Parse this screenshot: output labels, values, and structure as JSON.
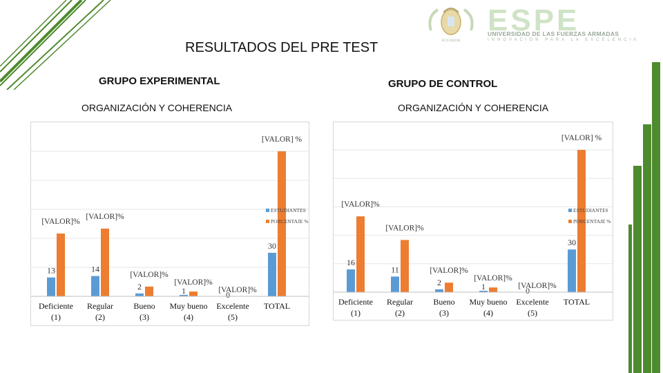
{
  "slide": {
    "title": "RESULTADOS DEL PRE TEST",
    "logo": {
      "word": "ESPE",
      "subtitle": "UNIVERSIDAD DE LAS FUERZAS ARMADAS",
      "tagline": "INNOVACIÓN PARA LA EXCELENCIA",
      "seal_text": "ECUADOR"
    },
    "colors": {
      "accent_green": "#4e8a2e",
      "bar_blue": "#5b9bd5",
      "bar_orange": "#ed7d31",
      "logo_green": "#cfe3c6"
    }
  },
  "chart_data": [
    {
      "type": "bar",
      "group_title": "GRUPO EXPERIMENTAL",
      "title": "ORGANIZACIÓN Y COHERENCIA",
      "categories": [
        "Deficiente (1)",
        "Regular (2)",
        "Bueno (3)",
        "Muy bueno (4)",
        "Excelente (5)",
        "TOTAL"
      ],
      "category_lines": [
        [
          "Deficiente",
          "(1)"
        ],
        [
          "Regular",
          "(2)"
        ],
        [
          "Bueno",
          "(3)"
        ],
        [
          "Muy bueno",
          "(4)"
        ],
        [
          "Excelente",
          "(5)"
        ],
        [
          "TOTAL",
          ""
        ]
      ],
      "series": [
        {
          "name": "ESTUDIANTES",
          "values": [
            13,
            14,
            2,
            1,
            0,
            30
          ],
          "labels": [
            "13",
            "14",
            "2",
            "1",
            "0",
            "30"
          ]
        },
        {
          "name": "PORCENTAJE %",
          "values": [
            43.3,
            46.7,
            6.7,
            3.3,
            0,
            100
          ],
          "labels": [
            "[VALOR]%",
            "[VALOR]%",
            "[VALOR]%",
            "[VALOR]%",
            "[VALOR]%",
            "[VALOR] %"
          ]
        }
      ],
      "ylim": [
        0,
        100
      ],
      "grid": true,
      "legend": "right"
    },
    {
      "type": "bar",
      "group_title": "GRUPO DE CONTROL",
      "title": "ORGANIZACIÓN Y COHERENCIA",
      "categories": [
        "Deficiente (1)",
        "Regular (2)",
        "Bueno (3)",
        "Muy bueno (4)",
        "Excelente (5)",
        "TOTAL"
      ],
      "category_lines": [
        [
          "Deficiente",
          "(1)"
        ],
        [
          "Regular",
          "(2)"
        ],
        [
          "Bueno",
          "(3)"
        ],
        [
          "Muy bueno",
          "(4)"
        ],
        [
          "Excelente",
          "(5)"
        ],
        [
          "TOTAL",
          ""
        ]
      ],
      "series": [
        {
          "name": "ESTUDIANTES",
          "values": [
            16,
            11,
            2,
            1,
            0,
            30
          ],
          "labels": [
            "16",
            "11",
            "2",
            "1",
            "0",
            "30"
          ]
        },
        {
          "name": "PORCENTAJE %",
          "values": [
            53.3,
            36.7,
            6.7,
            3.3,
            0,
            100
          ],
          "labels": [
            "[VALOR]%",
            "[VALOR]%",
            "[VALOR]%",
            "[VALOR]%",
            "[VALOR]%",
            "[VALOR] %"
          ]
        }
      ],
      "ylim": [
        0,
        100
      ],
      "grid": true,
      "legend": "right"
    }
  ]
}
